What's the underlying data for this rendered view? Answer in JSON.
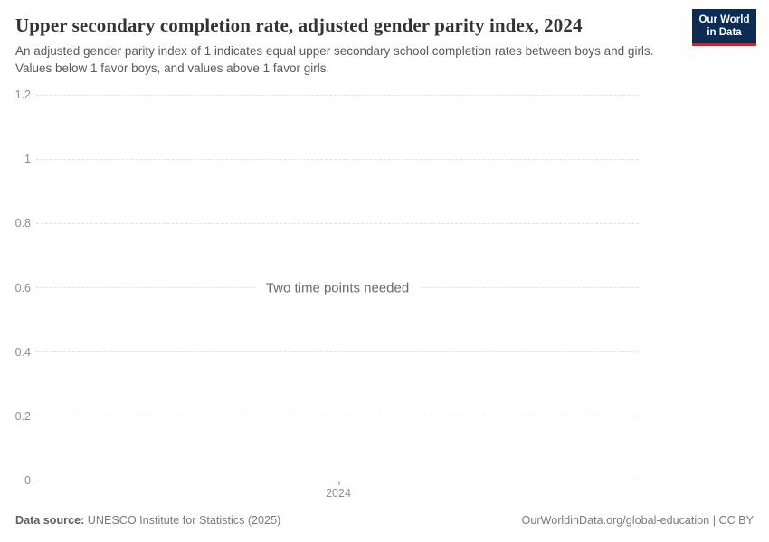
{
  "header": {
    "title": "Upper secondary completion rate, adjusted gender parity index, 2024",
    "subtitle": "An adjusted gender parity index of 1 indicates equal upper secondary school completion rates between boys and girls. Values below 1 favor boys, and values above 1 favor girls.",
    "logo": {
      "line1": "Our World",
      "line2": "in Data"
    }
  },
  "chart_data": {
    "type": "line",
    "title": "Upper secondary completion rate, adjusted gender parity index, 2024",
    "series": [],
    "empty_message": "Two time points needed",
    "x_ticks": [
      "2024"
    ],
    "y_ticks": [
      0,
      0.2,
      0.4,
      0.6,
      0.8,
      1,
      1.2
    ],
    "ylim": [
      0,
      1.2
    ],
    "grid": true,
    "legend": "none"
  },
  "footer": {
    "source_label": "Data source:",
    "source_value": "UNESCO Institute for Statistics (2025)",
    "link": "OurWorldinData.org/global-education | CC BY"
  },
  "colors": {
    "logo_bg": "#0d2c54",
    "logo_red": "#c9262e",
    "grid": "#e1e1e1",
    "axis": "#b0b0b0",
    "tick_label": "#8e8e8e"
  }
}
